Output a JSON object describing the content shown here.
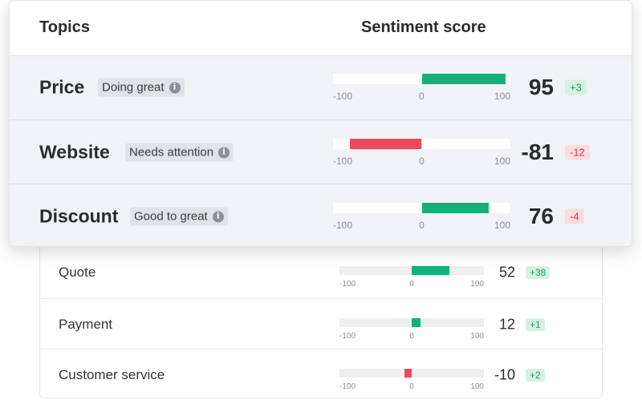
{
  "colors": {
    "positive": "#13b07a",
    "negative": "#f0475a"
  },
  "header": {
    "topics_label": "Topics",
    "sentiment_label": "Sentiment score"
  },
  "scale": {
    "min_label": "-100",
    "zero_label": "0",
    "max_label": "100",
    "min": -100,
    "max": 100
  },
  "topics": [
    {
      "name": "Price",
      "status": "Doing great",
      "score": 95,
      "score_text": "95",
      "delta": "+3",
      "delta_sign": "pos"
    },
    {
      "name": "Website",
      "status": "Needs attention",
      "score": -81,
      "score_text": "-81",
      "delta": "-12",
      "delta_sign": "neg"
    },
    {
      "name": "Discount",
      "status": "Good to great",
      "score": 76,
      "score_text": "76",
      "delta": "-4",
      "delta_sign": "neg"
    }
  ],
  "secondary_topics": [
    {
      "name": "Quote",
      "score": 52,
      "score_text": "52",
      "delta": "+38",
      "delta_sign": "pos"
    },
    {
      "name": "Payment",
      "score": 12,
      "score_text": "12",
      "delta": "+1",
      "delta_sign": "pos"
    },
    {
      "name": "Customer service",
      "score": -10,
      "score_text": "-10",
      "delta": "+2",
      "delta_sign": "pos"
    }
  ]
}
